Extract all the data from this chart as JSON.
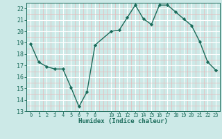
{
  "xlabel": "Humidex (Indice chaleur)",
  "x_values": [
    0,
    1,
    2,
    3,
    4,
    5,
    6,
    7,
    8,
    10,
    11,
    12,
    13,
    14,
    15,
    16,
    17,
    18,
    19,
    20,
    21,
    22,
    23
  ],
  "y_values": [
    18.9,
    17.3,
    16.9,
    16.7,
    16.7,
    15.1,
    13.4,
    14.7,
    18.8,
    20.0,
    20.1,
    21.2,
    22.3,
    21.1,
    20.6,
    22.3,
    22.3,
    21.7,
    21.1,
    20.5,
    19.1,
    17.3,
    16.6
  ],
  "line_color": "#1a6b5a",
  "marker": "D",
  "marker_size": 2.2,
  "bg_color": "#cce9e7",
  "grid_color_major": "#ffffff",
  "grid_color_minor": "#e8b8b8",
  "ylim": [
    13,
    22.5
  ],
  "yticks": [
    13,
    14,
    15,
    16,
    17,
    18,
    19,
    20,
    21,
    22
  ],
  "xlim": [
    -0.5,
    23.5
  ],
  "xticks": [
    0,
    1,
    2,
    3,
    4,
    5,
    6,
    7,
    8,
    10,
    11,
    12,
    13,
    14,
    15,
    16,
    17,
    18,
    19,
    20,
    21,
    22,
    23
  ]
}
